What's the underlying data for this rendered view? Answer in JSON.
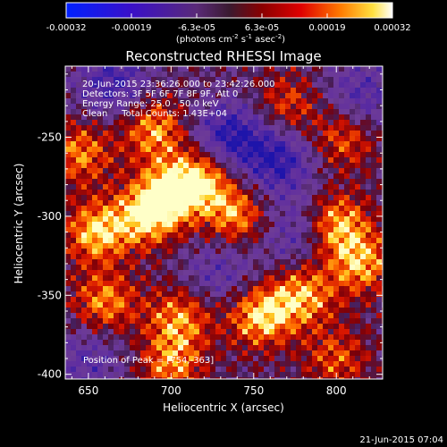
{
  "chart_data": {
    "type": "heatmap",
    "title": "Reconstructed RHESSI Image",
    "xlabel": "Heliocentric X (arcsec)",
    "ylabel": "Heliocentric Y (arcsec)",
    "xlim": [
      636,
      828
    ],
    "ylim": [
      -403,
      -205
    ],
    "x_ticks": [
      650,
      700,
      750,
      800
    ],
    "x_tick_labels": [
      "650",
      "700",
      "750",
      "800"
    ],
    "y_ticks": [
      -250,
      -300,
      -350,
      -400
    ],
    "y_tick_labels": [
      "-250",
      "-300",
      "-350",
      "-400"
    ],
    "colorbar": {
      "range": [
        -0.00032,
        0.00032
      ],
      "tick_labels": [
        "-0.00032",
        "-0.00019",
        "-6.3e-05",
        "6.3e-05",
        "0.00019",
        "0.00032"
      ],
      "units_prefix": "(photons cm",
      "units_exp1": "-2",
      "units_mid": " s",
      "units_exp2": "-1",
      "units_mid2": " asec",
      "units_exp3": "-2",
      "units_suffix": ")"
    },
    "annotations": [
      "20-Jun-2015 23:36:26.000 to 23:42:26.000",
      "Detectors: 3F 5F 6F 7F 8F 9F, Att 0",
      "Energy Range: 25.0 - 50.0 keV",
      "Clean     Total Counts: 1.43E+04"
    ],
    "peak_label": "Position of Peak = [754,-363]",
    "hotspots": [
      {
        "x": 700,
        "y": -285,
        "strength": 1.0
      },
      {
        "x": 720,
        "y": -275,
        "strength": 0.9
      },
      {
        "x": 740,
        "y": -300,
        "strength": 0.85
      },
      {
        "x": 655,
        "y": -310,
        "strength": 0.95
      },
      {
        "x": 685,
        "y": -300,
        "strength": 0.9
      },
      {
        "x": 800,
        "y": -305,
        "strength": 0.95
      },
      {
        "x": 815,
        "y": -330,
        "strength": 0.85
      },
      {
        "x": 754,
        "y": -363,
        "strength": 1.0
      },
      {
        "x": 780,
        "y": -350,
        "strength": 0.85
      },
      {
        "x": 705,
        "y": -365,
        "strength": 0.8
      },
      {
        "x": 660,
        "y": -355,
        "strength": 0.8
      },
      {
        "x": 690,
        "y": -245,
        "strength": 0.85
      },
      {
        "x": 645,
        "y": -260,
        "strength": 0.75
      },
      {
        "x": 770,
        "y": -230,
        "strength": 0.6
      },
      {
        "x": 805,
        "y": -250,
        "strength": 0.7
      },
      {
        "x": 700,
        "y": -395,
        "strength": 0.75
      },
      {
        "x": 800,
        "y": -390,
        "strength": 0.6
      }
    ],
    "coldspots": [
      {
        "x": 735,
        "y": -250,
        "strength": 0.9
      },
      {
        "x": 765,
        "y": -265,
        "strength": 0.8
      },
      {
        "x": 665,
        "y": -215,
        "strength": 0.7
      },
      {
        "x": 775,
        "y": -310,
        "strength": 0.55
      },
      {
        "x": 815,
        "y": -225,
        "strength": 0.6
      },
      {
        "x": 730,
        "y": -335,
        "strength": 0.5
      },
      {
        "x": 650,
        "y": -390,
        "strength": 0.5
      }
    ]
  },
  "footer": {
    "date": "21-Jun-2015 07:04"
  }
}
